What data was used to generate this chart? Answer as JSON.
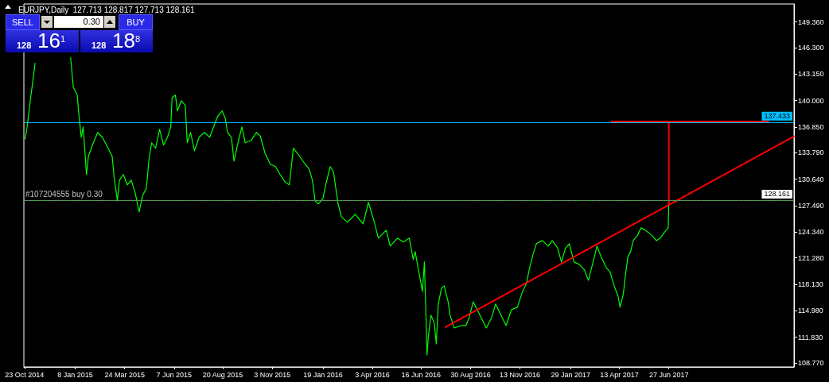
{
  "chart_data": {
    "type": "line",
    "title": "EURJPY,Daily  127.713 128.817 127.713 128.161",
    "annotations": [
      "SELL",
      "0.30",
      "BUY",
      "128",
      "16$^{1}$",
      "128",
      "18$^{8}$"
    ],
    "xlim": [
      "2014-10-22",
      "2018-01-03"
    ],
    "xticks": [
      {
        "value": "2014-10-23",
        "label": "23 Oct 2014"
      },
      {
        "value": "2015-01-08",
        "label": "8 Jan 2015"
      },
      {
        "value": "2015-03-24",
        "label": "24 Mar 2015"
      },
      {
        "value": "2015-06-07",
        "label": "7 Jun 2015"
      },
      {
        "value": "2015-08-20",
        "label": "20 Aug 2015"
      },
      {
        "value": "2015-11-03",
        "label": "3 Nov 2015"
      },
      {
        "value": "2016-01-19",
        "label": "19 Jan 2016"
      },
      {
        "value": "2016-04-03",
        "label": "3 Apr 2016"
      },
      {
        "value": "2016-06-16",
        "label": "16 Jun 2016"
      },
      {
        "value": "2016-08-30",
        "label": "30 Aug 2016"
      },
      {
        "value": "2016-11-13",
        "label": "13 Nov 2016"
      },
      {
        "value": "2017-01-29",
        "label": "29 Jan 2017"
      },
      {
        "value": "2017-04-13",
        "label": "13 Apr 2017"
      },
      {
        "value": "2017-06-27",
        "label": "27 Jun 2017"
      }
    ],
    "ylim": [
      108.3,
      151.5
    ],
    "yticks": [
      {
        "value": 108.77,
        "label": "108.770"
      },
      {
        "value": 111.83,
        "label": "111.830"
      },
      {
        "value": 114.98,
        "label": "114.980"
      },
      {
        "value": 118.13,
        "label": "118.130"
      },
      {
        "value": 121.28,
        "label": "121.280"
      },
      {
        "value": 124.34,
        "label": "124.340"
      },
      {
        "value": 127.49,
        "label": "127.490"
      },
      {
        "value": 130.64,
        "label": "130.640"
      },
      {
        "value": 133.79,
        "label": "133.790"
      },
      {
        "value": 136.85,
        "label": "136.850"
      },
      {
        "value": 140.0,
        "label": "140.000"
      },
      {
        "value": 143.15,
        "label": "143.150"
      },
      {
        "value": 146.3,
        "label": "146.300"
      },
      {
        "value": 149.36,
        "label": "149.360"
      }
    ],
    "marker": "none",
    "ref_lines": [
      {
        "axis": "y",
        "value": 137.433,
        "label": "137.433",
        "color": "#00bfff"
      },
      {
        "axis": "y",
        "value": 128.161,
        "label": "128.161",
        "color": "#00c000"
      },
      {
        "axis": "y",
        "value": 128.161,
        "label": "#107204555 buy 0.30",
        "color": "#808080",
        "line_style": "dashed"
      }
    ],
    "series": [
      {
        "color": "#00ff00",
        "x": [
          "2014-10-24",
          "2014-10-27",
          "2014-11-01",
          "2014-11-05",
          "2014-11-08",
          "2014-11-13",
          "2014-11-18",
          "2014-12-02",
          "2014-12-17",
          "2014-12-30",
          "2015-01-01",
          "2015-01-05",
          "2015-01-11",
          "2015-01-13",
          "2015-01-17",
          "2015-01-20",
          "2015-01-22",
          "2015-01-25",
          "2015-01-28",
          "2015-02-03",
          "2015-02-11",
          "2015-02-18",
          "2015-02-27",
          "2015-03-05",
          "2015-03-08",
          "2015-03-13",
          "2015-03-16",
          "2015-03-22",
          "2015-03-28",
          "2015-04-03",
          "2015-04-09",
          "2015-04-15",
          "2015-04-20",
          "2015-04-26",
          "2015-04-30",
          "2015-05-04",
          "2015-05-10",
          "2015-05-16",
          "2015-05-22",
          "2015-05-28",
          "2015-06-02",
          "2015-06-04",
          "2015-06-09",
          "2015-06-12",
          "2015-06-18",
          "2015-06-24",
          "2015-06-27",
          "2015-07-02",
          "2015-07-08",
          "2015-07-15",
          "2015-07-23",
          "2015-07-31",
          "2015-08-06",
          "2015-08-12",
          "2015-08-19",
          "2015-08-24",
          "2015-08-27",
          "2015-09-02",
          "2015-09-06",
          "2015-09-12",
          "2015-09-18",
          "2015-09-23",
          "2015-10-02",
          "2015-10-10",
          "2015-10-16",
          "2015-10-23",
          "2015-10-31",
          "2015-11-08",
          "2015-11-15",
          "2015-11-23",
          "2015-11-29",
          "2015-12-05",
          "2015-12-11",
          "2015-12-17",
          "2015-12-23",
          "2015-12-29",
          "2016-01-03",
          "2016-01-07",
          "2016-01-12",
          "2016-01-19",
          "2016-01-24",
          "2016-01-30",
          "2016-02-04",
          "2016-02-08",
          "2016-02-11",
          "2016-02-16",
          "2016-02-25",
          "2016-03-08",
          "2016-03-20",
          "2016-03-28",
          "2016-04-06",
          "2016-04-12",
          "2016-04-24",
          "2016-04-30",
          "2016-05-11",
          "2016-05-20",
          "2016-05-29",
          "2016-06-04",
          "2016-06-07",
          "2016-06-12",
          "2016-06-18",
          "2016-06-21",
          "2016-06-25",
          "2016-06-27",
          "2016-07-01",
          "2016-07-06",
          "2016-07-09",
          "2016-07-12",
          "2016-07-17",
          "2016-07-21",
          "2016-07-27",
          "2016-07-30",
          "2016-08-05",
          "2016-08-16",
          "2016-08-23",
          "2016-08-28",
          "2016-09-03",
          "2016-09-11",
          "2016-09-23",
          "2016-10-01",
          "2016-10-07",
          "2016-10-13",
          "2016-10-23",
          "2016-10-31",
          "2016-11-09",
          "2016-11-17",
          "2016-11-23",
          "2016-11-27",
          "2016-12-03",
          "2016-12-08",
          "2016-12-17",
          "2016-12-26",
          "2017-01-01",
          "2017-01-09",
          "2017-01-15",
          "2017-01-21",
          "2017-01-27",
          "2017-02-03",
          "2017-02-11",
          "2017-02-19",
          "2017-02-25",
          "2017-03-04",
          "2017-03-10",
          "2017-03-16",
          "2017-03-24",
          "2017-03-30",
          "2017-04-05",
          "2017-04-11",
          "2017-04-14",
          "2017-04-19",
          "2017-04-22",
          "2017-04-26",
          "2017-04-30",
          "2017-05-04",
          "2017-05-10",
          "2017-05-16",
          "2017-05-22",
          "2017-05-27",
          "2017-06-02",
          "2017-06-08",
          "2017-06-14",
          "2017-06-20",
          "2017-06-26",
          "2017-06-27"
        ],
        "values": [
          135.45,
          136.87,
          140.18,
          142.55,
          144.44,
          null,
          null,
          null,
          null,
          null,
          145.1,
          141.6,
          140.66,
          138.77,
          135.64,
          136.87,
          134.7,
          131.2,
          133.37,
          134.7,
          136.21,
          135.64,
          134.32,
          133.37,
          130.91,
          128.07,
          130.53,
          131.2,
          129.97,
          130.53,
          129.02,
          126.75,
          128.64,
          129.59,
          133.09,
          134.98,
          134.32,
          136.59,
          134.7,
          135.64,
          136.87,
          140.37,
          140.66,
          138.77,
          139.99,
          139.43,
          134.98,
          136.21,
          134.03,
          135.64,
          136.21,
          135.64,
          136.87,
          138.1,
          138.77,
          137.82,
          136.21,
          135.64,
          132.8,
          134.98,
          136.87,
          134.98,
          135.26,
          136.21,
          135.74,
          133.75,
          132.43,
          132.14,
          131.2,
          130.25,
          129.97,
          134.32,
          133.75,
          133.09,
          132.43,
          131.86,
          130.53,
          128.07,
          127.7,
          128.36,
          130.25,
          132.14,
          131.48,
          129.3,
          127.7,
          126.18,
          125.52,
          126.47,
          125.33,
          127.89,
          125.52,
          123.63,
          124.57,
          122.68,
          123.63,
          123.16,
          123.63,
          121.07,
          122.02,
          119.84,
          117.29,
          120.79,
          109.72,
          111.99,
          114.45,
          113.51,
          111.05,
          115.78,
          117.67,
          117.95,
          116.06,
          114.45,
          112.94,
          113.22,
          113.22,
          114.17,
          116.06,
          114.83,
          112.94,
          114.17,
          115.78,
          114.83,
          113.22,
          115.11,
          115.4,
          117.29,
          118.24,
          119.84,
          121.74,
          122.97,
          123.34,
          122.68,
          123.34,
          122.49,
          120.79,
          122.4,
          122.97,
          120.79,
          120.51,
          119.84,
          118.61,
          120.79,
          122.68,
          121.45,
          120.13,
          119.56,
          117.95,
          116.72,
          115.4,
          117.01,
          119.18,
          121.45,
          122.02,
          123.34,
          123.91,
          124.86,
          124.57,
          124.29,
          123.91,
          123.34,
          123.63,
          124.29,
          124.86,
          128.16
        ]
      },
      {
        "type": "line",
        "color": "#ff0000",
        "x": [
          "2016-07-23",
          "2018-01-03"
        ],
        "values": [
          113.03,
          135.74
        ]
      },
      {
        "type": "line",
        "color": "#ff0000",
        "x": [
          "2017-04-01",
          "2017-11-25"
        ],
        "values": [
          137.5,
          137.5
        ]
      },
      {
        "type": "line",
        "color": "#ff0000",
        "x": [
          "2017-06-27",
          "2017-06-27"
        ],
        "values": [
          137.5,
          127.6
        ]
      }
    ]
  }
}
